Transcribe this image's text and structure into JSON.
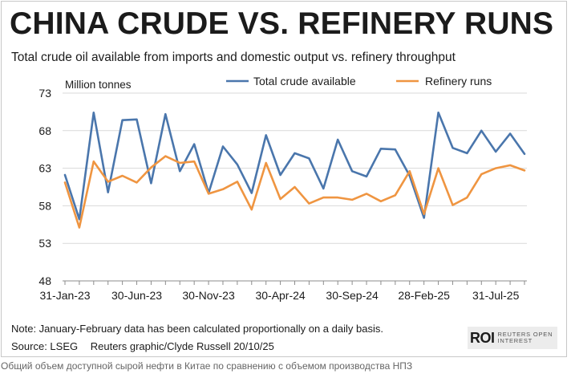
{
  "header": {
    "title": "CHINA CRUDE VS. REFINERY RUNS",
    "subtitle": "Total crude oil available from imports and domestic output vs. refinery throughput"
  },
  "footer": {
    "note": "Note: January-February data has been calculated proportionally on a daily basis.",
    "source": "Source: LSEG",
    "credit": "Reuters graphic/Clyde Russell 20/10/25",
    "logo_mark": "ROI",
    "logo_text": "REUTERS OPEN\nINTEREST"
  },
  "caption": "Общий объем доступной сырой нефти в Китае по сравнению с объемом производства НПЗ",
  "colors": {
    "total": "#4a76ac",
    "runs": "#ef9541",
    "grid": "#d9d9d9",
    "axis": "#8c8c8c"
  },
  "chart_data": {
    "type": "line",
    "title": "CHINA CRUDE VS. REFINERY RUNS",
    "ylabel": "Million tonnes",
    "ylim": [
      48,
      73
    ],
    "yticks": [
      48,
      53,
      58,
      63,
      68,
      73
    ],
    "x": [
      "Jan-23",
      "Feb-23",
      "Mar-23",
      "Apr-23",
      "May-23",
      "Jun-23",
      "Jul-23",
      "Aug-23",
      "Sep-23",
      "Oct-23",
      "Nov-23",
      "Dec-23",
      "Jan-24",
      "Feb-24",
      "Mar-24",
      "Apr-24",
      "May-24",
      "Jun-24",
      "Jul-24",
      "Aug-24",
      "Sep-24",
      "Oct-24",
      "Nov-24",
      "Dec-24",
      "Jan-25",
      "Feb-25",
      "Mar-25",
      "Apr-25",
      "May-25",
      "Jun-25",
      "Jul-25",
      "Aug-25",
      "Sep-25"
    ],
    "xtick_labels": [
      {
        "index": 0,
        "label": "31-Jan-23"
      },
      {
        "index": 5,
        "label": "30-Jun-23"
      },
      {
        "index": 10,
        "label": "30-Nov-23"
      },
      {
        "index": 15,
        "label": "30-Apr-24"
      },
      {
        "index": 20,
        "label": "30-Sep-24"
      },
      {
        "index": 25,
        "label": "28-Feb-25"
      },
      {
        "index": 30,
        "label": "31-Jul-25"
      }
    ],
    "series": [
      {
        "name": "Total crude available",
        "color_key": "total",
        "values": [
          62.1,
          56.2,
          70.4,
          59.8,
          69.4,
          69.5,
          61.0,
          70.2,
          62.6,
          66.2,
          59.7,
          65.9,
          63.5,
          59.7,
          67.4,
          62.1,
          65.0,
          64.3,
          60.3,
          66.8,
          62.6,
          61.9,
          65.6,
          65.5,
          62.0,
          56.4,
          70.4,
          65.7,
          65.0,
          68.0,
          65.2,
          67.6,
          64.9
        ]
      },
      {
        "name": "Refinery runs",
        "color_key": "runs",
        "values": [
          61.1,
          55.1,
          63.9,
          61.2,
          62.0,
          61.1,
          63.1,
          64.6,
          63.7,
          63.9,
          59.6,
          60.2,
          61.2,
          57.5,
          63.7,
          58.9,
          60.5,
          58.3,
          59.1,
          59.1,
          58.8,
          59.6,
          58.6,
          59.4,
          62.6,
          56.9,
          63.0,
          58.1,
          59.1,
          62.2,
          63.0,
          63.4,
          62.7
        ]
      }
    ],
    "legend": "top-right"
  }
}
